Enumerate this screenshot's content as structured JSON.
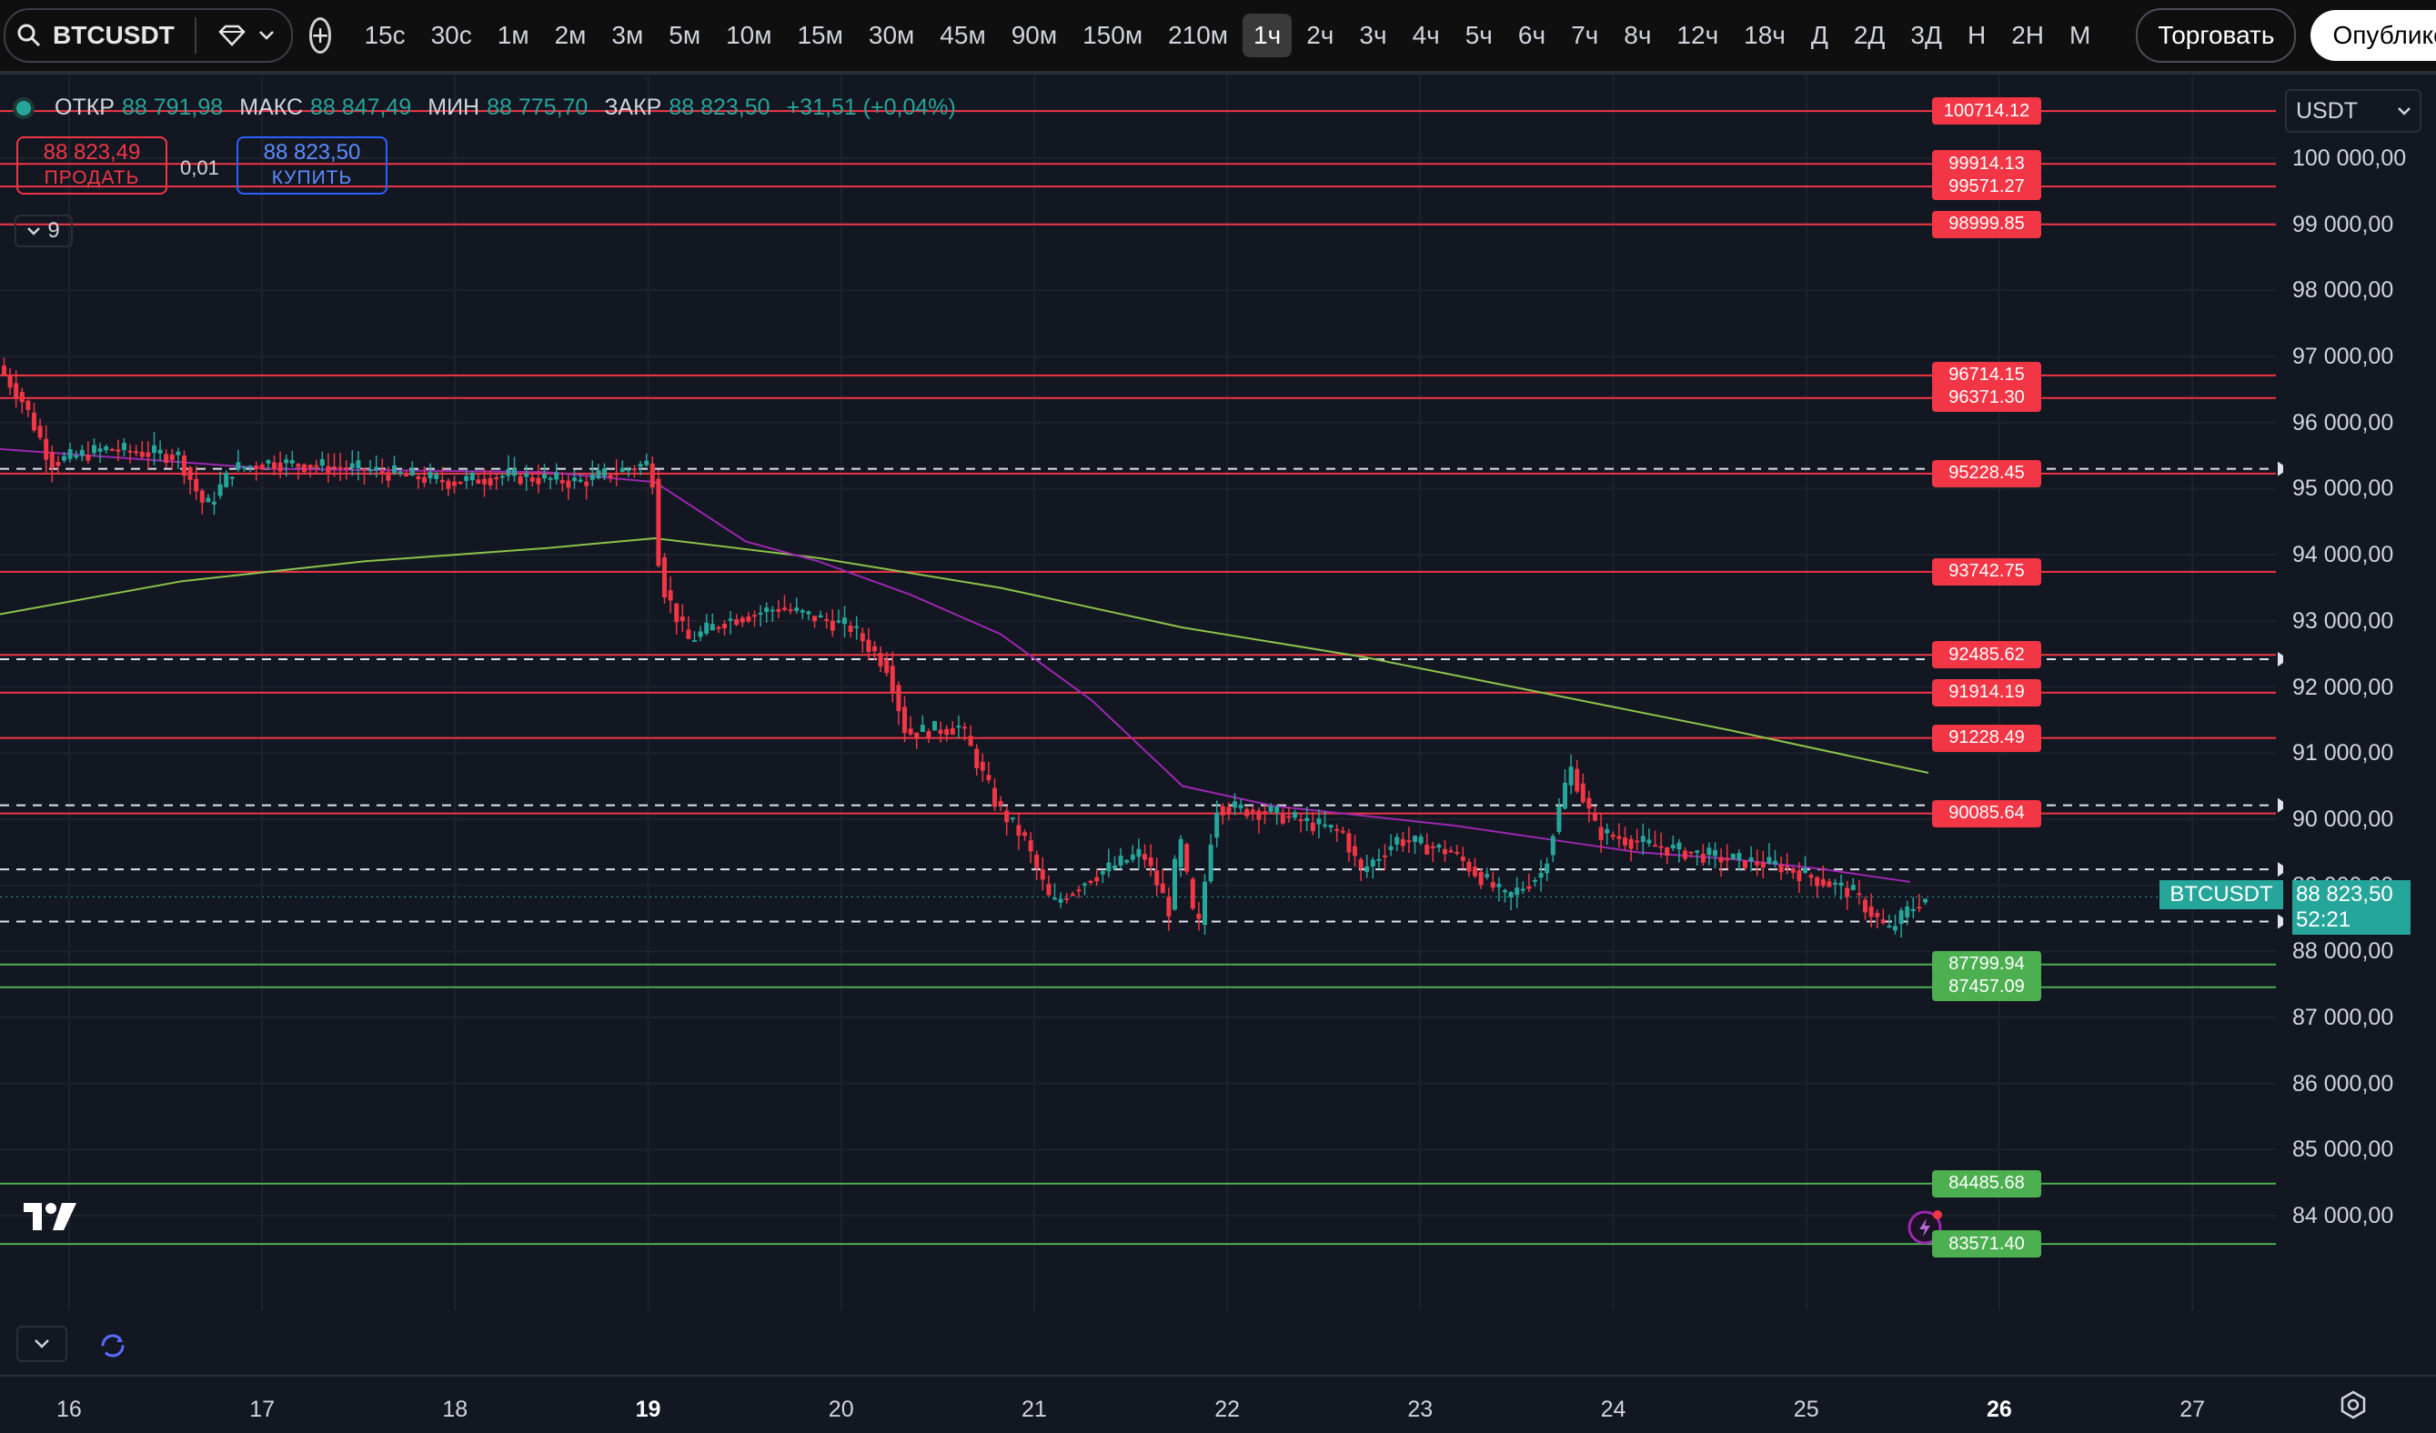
{
  "toolbar": {
    "symbol": "BTCUSDT",
    "intervals": [
      "15с",
      "30с",
      "1м",
      "2м",
      "3м",
      "5м",
      "10м",
      "15м",
      "30м",
      "45м",
      "90м",
      "150м",
      "210м",
      "1ч",
      "2ч",
      "3ч",
      "4ч",
      "5ч",
      "6ч",
      "7ч",
      "8ч",
      "12ч",
      "18ч",
      "Д",
      "2Д",
      "3Д",
      "Н",
      "2Н",
      "М"
    ],
    "active_interval": "1ч",
    "trade_label": "Торговать",
    "publish_label": "Опублико"
  },
  "legend": {
    "open_label": "ОТКР",
    "open": "88 791,98",
    "high_label": "МАКС",
    "high": "88 847,49",
    "low_label": "МИН",
    "low": "88 775,70",
    "close_label": "ЗАКР",
    "close": "88 823,50",
    "change": "+31,51 (+0,04%)"
  },
  "trade": {
    "sell_price": "88 823,49",
    "sell_label": "ПРОДАТЬ",
    "spread": "0,01",
    "buy_price": "88 823,50",
    "buy_label": "КУПИТЬ"
  },
  "indicators_count": "9",
  "currency_select": "USDT",
  "price_axis": [
    "100 000,00",
    "99 000,00",
    "98 000,00",
    "97 000,00",
    "96 000,00",
    "95 000,00",
    "94 000,00",
    "93 000,00",
    "92 000,00",
    "91 000,00",
    "90 000,00",
    "89 000,00",
    "88 000,00",
    "87 000,00",
    "86 000,00",
    "85 000,00",
    "84 000,00"
  ],
  "levels": [
    {
      "value": "100714.12",
      "color": "red"
    },
    {
      "value": "99914.13",
      "color": "red"
    },
    {
      "value": "99571.27",
      "color": "red"
    },
    {
      "value": "98999.85",
      "color": "red"
    },
    {
      "value": "96714.15",
      "color": "red"
    },
    {
      "value": "96371.30",
      "color": "red"
    },
    {
      "value": "95228.45",
      "color": "red"
    },
    {
      "value": "93742.75",
      "color": "red"
    },
    {
      "value": "92485.62",
      "color": "red"
    },
    {
      "value": "91914.19",
      "color": "red"
    },
    {
      "value": "91228.49",
      "color": "red"
    },
    {
      "value": "90085.64",
      "color": "red"
    },
    {
      "value": "87799.94",
      "color": "green"
    },
    {
      "value": "87457.09",
      "color": "green"
    },
    {
      "value": "84485.68",
      "color": "green"
    },
    {
      "value": "83571.40",
      "color": "green"
    }
  ],
  "last_price": {
    "symbol": "BTCUSDT",
    "price": "88 823,50",
    "countdown": "52:21"
  },
  "time_axis": [
    "16",
    "17",
    "18",
    "19",
    "20",
    "21",
    "22",
    "23",
    "24",
    "25",
    "26",
    "27"
  ],
  "colors": {
    "up": "#26a69a",
    "down": "#f23645",
    "ma_fast": "#9c27b0",
    "ma_slow": "#8bc34a"
  }
}
